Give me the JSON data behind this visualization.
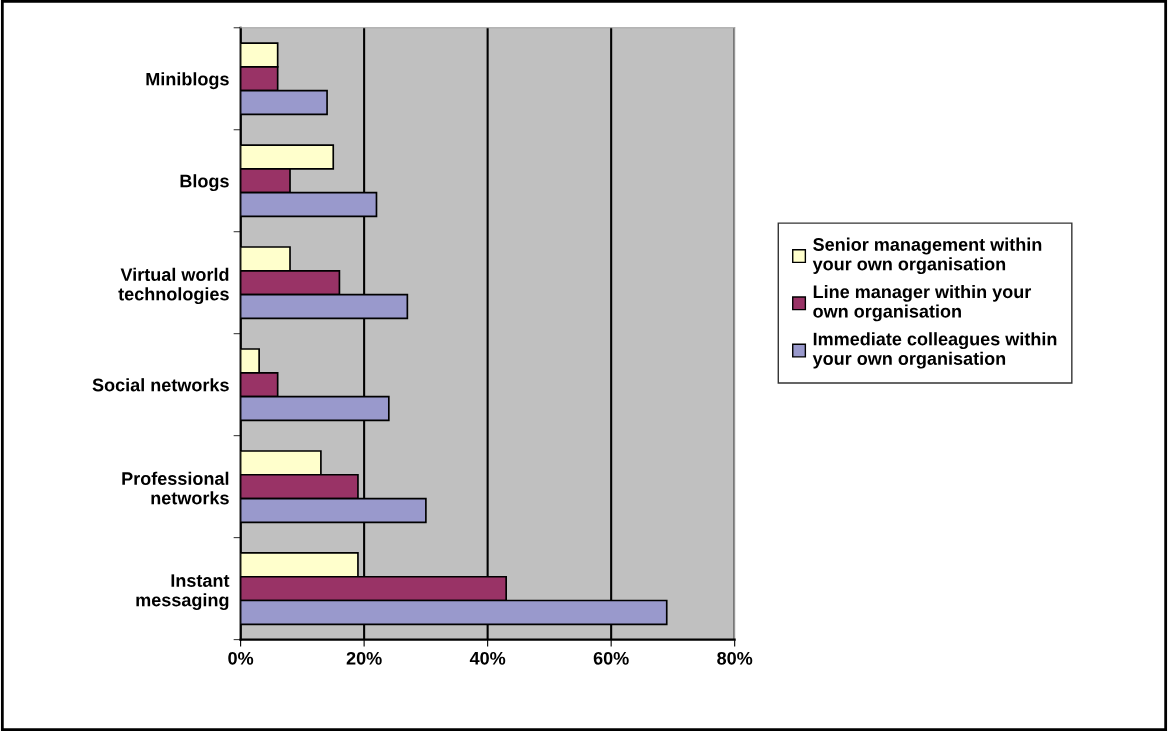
{
  "chart_data": {
    "type": "bar",
    "orientation": "horizontal",
    "categories": [
      "Miniblogs",
      "Blogs",
      "Virtual world\ntechnologies",
      "Social networks",
      "Professional\nnetworks",
      "Instant\nmessaging"
    ],
    "series": [
      {
        "name": "Senior management within\nyour own organisation",
        "color": "#ffffcc",
        "values": [
          6,
          15,
          8,
          3,
          13,
          19
        ]
      },
      {
        "name": "Line manager within your\nown organisation",
        "color": "#993366",
        "values": [
          6,
          8,
          16,
          6,
          19,
          43
        ]
      },
      {
        "name": "Immediate colleagues within\nyour own organisation",
        "color": "#9999cc",
        "values": [
          14,
          22,
          27,
          24,
          30,
          69
        ]
      }
    ],
    "xlim": [
      0,
      80
    ],
    "xticks": [
      {
        "value": 0,
        "label": "0%"
      },
      {
        "value": 20,
        "label": "20%"
      },
      {
        "value": 40,
        "label": "40%"
      },
      {
        "value": 60,
        "label": "60%"
      },
      {
        "value": 80,
        "label": "80%"
      }
    ],
    "grid": "x",
    "legend": "right"
  }
}
